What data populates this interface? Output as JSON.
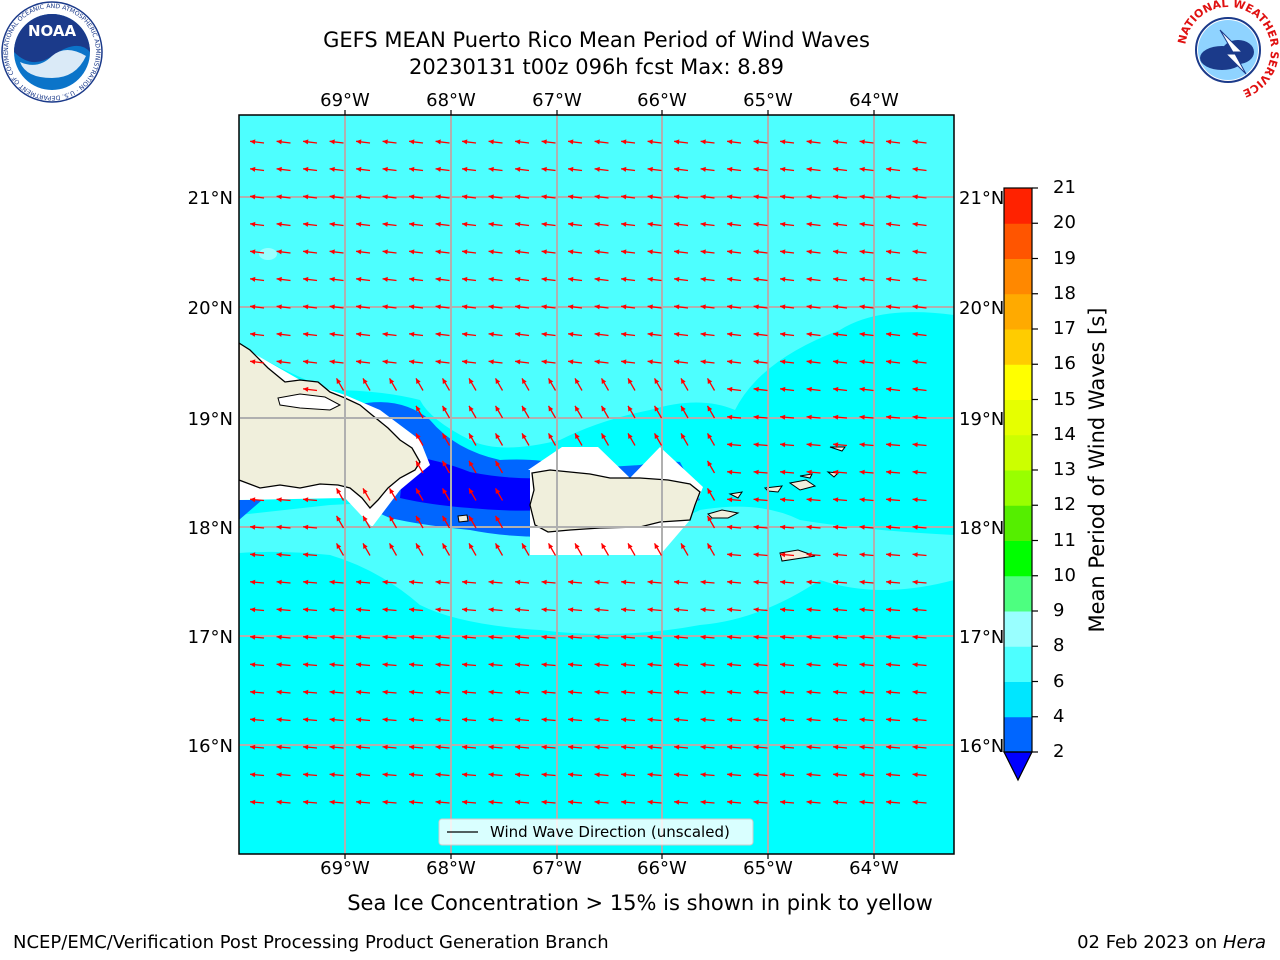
{
  "title": {
    "line1": "GEFS MEAN Puerto Rico Mean Period of Wind Waves",
    "line2": "20230131 t00z 096h fcst   Max: 8.89"
  },
  "logos": {
    "left": "NOAA",
    "left_ring": "NATIONAL OCEANIC AND ATMOSPHERIC ADMINISTRATION · U.S. DEPARTMENT OF COMMERCE",
    "right": "NATIONAL WEATHER SERVICE"
  },
  "map": {
    "lon_labels": [
      "69°W",
      "68°W",
      "67°W",
      "66°W",
      "65°W",
      "64°W"
    ],
    "lat_labels": [
      "21°N",
      "20°N",
      "19°N",
      "18°N",
      "17°N",
      "16°N"
    ],
    "legend": "Wind Wave Direction (unscaled)",
    "arrow_color": "#ff0000",
    "field_color": "#00ffff"
  },
  "colorbar": {
    "label": "Mean Period of Wind Waves [s]",
    "ticks": [
      "2",
      "4",
      "6",
      "8",
      "9",
      "10",
      "11",
      "12",
      "13",
      "14",
      "15",
      "16",
      "17",
      "18",
      "19",
      "20",
      "21"
    ],
    "colors": [
      "#0066ff",
      "#00e6ff",
      "#4dffff",
      "#99ffff",
      "#4dff80",
      "#00ff00",
      "#55ee00",
      "#99ff00",
      "#ccff00",
      "#e6ff00",
      "#ffff00",
      "#ffcc00",
      "#ffaa00",
      "#ff8800",
      "#ff5500",
      "#ff2200"
    ],
    "extend_color": "#0000ff"
  },
  "seaice_note": "Sea Ice Concentration > 15% is shown in pink to yellow",
  "footer": {
    "left": "NCEP/EMC/Verification Post Processing Product Generation Branch",
    "right_prefix": "02 Feb 2023 on ",
    "right_host": "Hera"
  }
}
